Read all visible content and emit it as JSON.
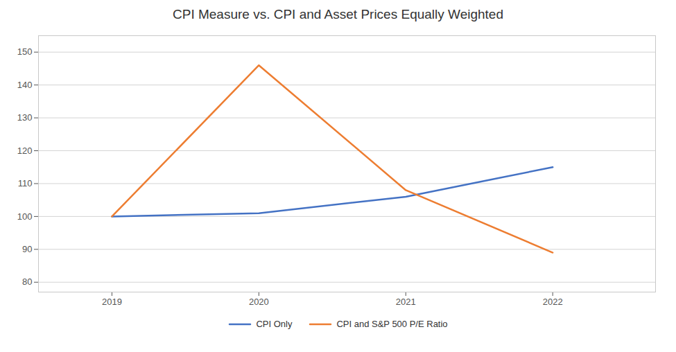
{
  "chart_data": {
    "type": "line",
    "title": "CPI Measure vs. CPI and Asset Prices Equally Weighted",
    "x": [
      2019,
      2020,
      2021,
      2022
    ],
    "series": [
      {
        "name": "CPI Only",
        "color": "#4472C4",
        "values": [
          100,
          101,
          106,
          115
        ]
      },
      {
        "name": "CPI and S&P 500 P/E Ratio",
        "color": "#ED7D31",
        "values": [
          100,
          146,
          108,
          89
        ]
      }
    ],
    "xlim": [
      2018.5,
      2022.7
    ],
    "xticks": [
      2019,
      2020,
      2021,
      2022
    ],
    "ylim": [
      77,
      155
    ],
    "yticks": [
      80,
      90,
      100,
      110,
      120,
      130,
      140,
      150
    ],
    "grid": "y",
    "legend": "bottom"
  }
}
